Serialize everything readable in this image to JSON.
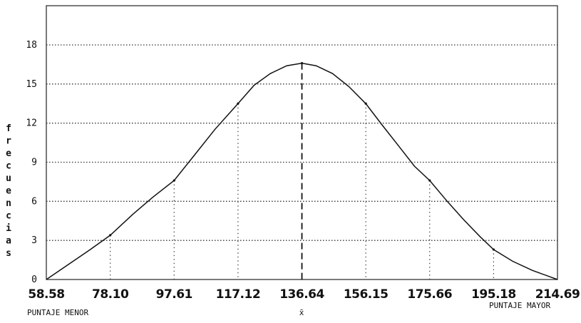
{
  "chart_data": {
    "type": "line",
    "title": "",
    "ylabel": "frecuencias",
    "ylim": [
      0,
      20
    ],
    "yticks": [
      0,
      3,
      6,
      9,
      12,
      15,
      18
    ],
    "xlim": [
      58.58,
      214.69
    ],
    "xticks": [
      "58.58",
      "78.10",
      "97.61",
      "117.12",
      "136.64",
      "156.15",
      "175.66",
      "195.18",
      "214.69"
    ],
    "x_min_label": "PUNTAJE MENOR",
    "x_max_label": "PUNTAJE MAYOR",
    "mean_label": "x̄",
    "mean_x": 136.64,
    "grid": true,
    "series": [
      {
        "x": [
          58.58,
          65,
          72,
          78.1,
          85,
          91,
          97.61,
          104,
          110,
          117.12,
          122,
          127,
          132,
          136.64,
          141,
          146,
          151,
          156.15,
          161,
          166,
          171,
          175.66,
          181,
          186,
          191,
          195.18,
          201,
          207,
          214.69
        ],
        "y": [
          0,
          1.1,
          2.3,
          3.4,
          5.0,
          6.3,
          7.6,
          9.6,
          11.5,
          13.5,
          14.9,
          15.8,
          16.4,
          16.6,
          16.4,
          15.8,
          14.8,
          13.5,
          11.9,
          10.3,
          8.7,
          7.6,
          6.0,
          4.6,
          3.3,
          2.3,
          1.4,
          0.7,
          0
        ]
      }
    ],
    "dotted_verticals": [
      {
        "x": 78.1,
        "y": 3.4
      },
      {
        "x": 97.61,
        "y": 7.6
      },
      {
        "x": 117.12,
        "y": 13.5
      },
      {
        "x": 156.15,
        "y": 13.5
      },
      {
        "x": 175.66,
        "y": 7.6
      },
      {
        "x": 195.18,
        "y": 2.3
      }
    ]
  }
}
